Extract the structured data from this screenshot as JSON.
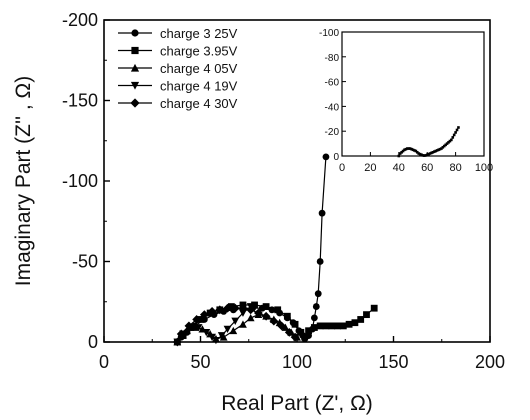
{
  "chart_data": [
    {
      "type": "scatter",
      "xlabel": "Real Part (Z', Ω)",
      "ylabel": "Imaginary Part (Z'' ,  Ω)",
      "xlim": [
        0,
        200
      ],
      "ylim": [
        0,
        -200
      ],
      "x_ticks": [
        "0",
        "50",
        "100",
        "150",
        "200"
      ],
      "y_ticks": [
        "0",
        "-50",
        "-100",
        "-150",
        "-200"
      ],
      "legend_position": "top-left",
      "series": [
        {
          "name": "charge  3 25V",
          "marker": "circle",
          "x": [
            38,
            40,
            43,
            47,
            52,
            57,
            62,
            67,
            72,
            77,
            82,
            87,
            91,
            95,
            98,
            101,
            103,
            104,
            106,
            108,
            109,
            110,
            111,
            112,
            113,
            115
          ],
          "y": [
            0,
            -3,
            -6,
            -10,
            -14,
            -17,
            -19,
            -20,
            -21,
            -21,
            -21,
            -20,
            -18,
            -15,
            -12,
            -7,
            -4,
            -2,
            -4,
            -8,
            -15,
            -22,
            -30,
            -50,
            -80,
            -115
          ]
        },
        {
          "name": "charge  3.95V",
          "marker": "square",
          "x": [
            38,
            41,
            45,
            50,
            55,
            60,
            66,
            72,
            78,
            84,
            90,
            95,
            99,
            102,
            104,
            106,
            109,
            112,
            115,
            118,
            121,
            124,
            127,
            130,
            133,
            136,
            140
          ],
          "y": [
            0,
            -4,
            -9,
            -14,
            -18,
            -20,
            -22,
            -23,
            -23,
            -22,
            -20,
            -16,
            -11,
            -6,
            -3,
            -7,
            -9,
            -10,
            -10,
            -10,
            -10,
            -10,
            -11,
            -12,
            -14,
            -17,
            -21
          ]
        },
        {
          "name": "charge  4 05V",
          "marker": "triangle-up",
          "x": [
            38,
            40,
            43,
            47,
            51,
            55,
            58,
            62,
            67,
            72,
            76,
            80,
            84,
            88,
            91,
            94,
            97,
            100
          ],
          "y": [
            0,
            -4,
            -7,
            -9,
            -8,
            -5,
            -2,
            -3,
            -7,
            -11,
            -15,
            -17,
            -16,
            -14,
            -12,
            -9,
            -6,
            -3
          ]
        },
        {
          "name": "charge  4 19V",
          "marker": "triangle-down",
          "x": [
            38,
            41,
            45,
            49,
            53,
            56,
            58,
            61,
            64,
            68,
            72,
            76
          ],
          "y": [
            0,
            -5,
            -9,
            -9,
            -6,
            -3,
            -1,
            -4,
            -8,
            -13,
            -18,
            -22
          ]
        },
        {
          "name": "charge  4 30V",
          "marker": "diamond",
          "x": [
            38,
            40,
            44,
            48,
            52,
            56,
            60,
            64,
            68,
            72,
            76,
            80,
            84,
            88,
            92,
            96,
            99
          ],
          "y": [
            0,
            -5,
            -10,
            -14,
            -17,
            -19,
            -20,
            -21,
            -21,
            -21,
            -20,
            -18,
            -16,
            -13,
            -10,
            -6,
            -3
          ]
        }
      ]
    },
    {
      "type": "scatter",
      "xlim": [
        0,
        100
      ],
      "ylim": [
        0,
        -100
      ],
      "x_ticks": [
        "0",
        "20",
        "40",
        "60",
        "80",
        "100"
      ],
      "y_ticks": [
        "0",
        "-20",
        "-40",
        "-60",
        "-80",
        "-100"
      ],
      "series": [
        {
          "name": "charge  4 30V",
          "marker": "small",
          "x": [
            40,
            41,
            42,
            43,
            44,
            45,
            46,
            47,
            48,
            49,
            50,
            51,
            52,
            53,
            54,
            55,
            56,
            57,
            58,
            59,
            60,
            61,
            62,
            63,
            64,
            65,
            66,
            67,
            68,
            69,
            70,
            71,
            72,
            73,
            74,
            75,
            76,
            77,
            78,
            79,
            80,
            81,
            82
          ],
          "y": [
            0,
            -2,
            -3,
            -4,
            -5,
            -5.5,
            -6,
            -6,
            -6,
            -5.5,
            -5,
            -4.5,
            -4,
            -3,
            -2,
            -1.5,
            -1,
            -0.5,
            -0.3,
            -0.5,
            -1,
            -1.5,
            -2,
            -2.5,
            -3,
            -3.5,
            -4,
            -4.5,
            -5,
            -5.5,
            -6,
            -7,
            -8,
            -9,
            -10,
            -11,
            -12,
            -13,
            -15,
            -17,
            -19,
            -21,
            -23
          ]
        }
      ]
    }
  ]
}
